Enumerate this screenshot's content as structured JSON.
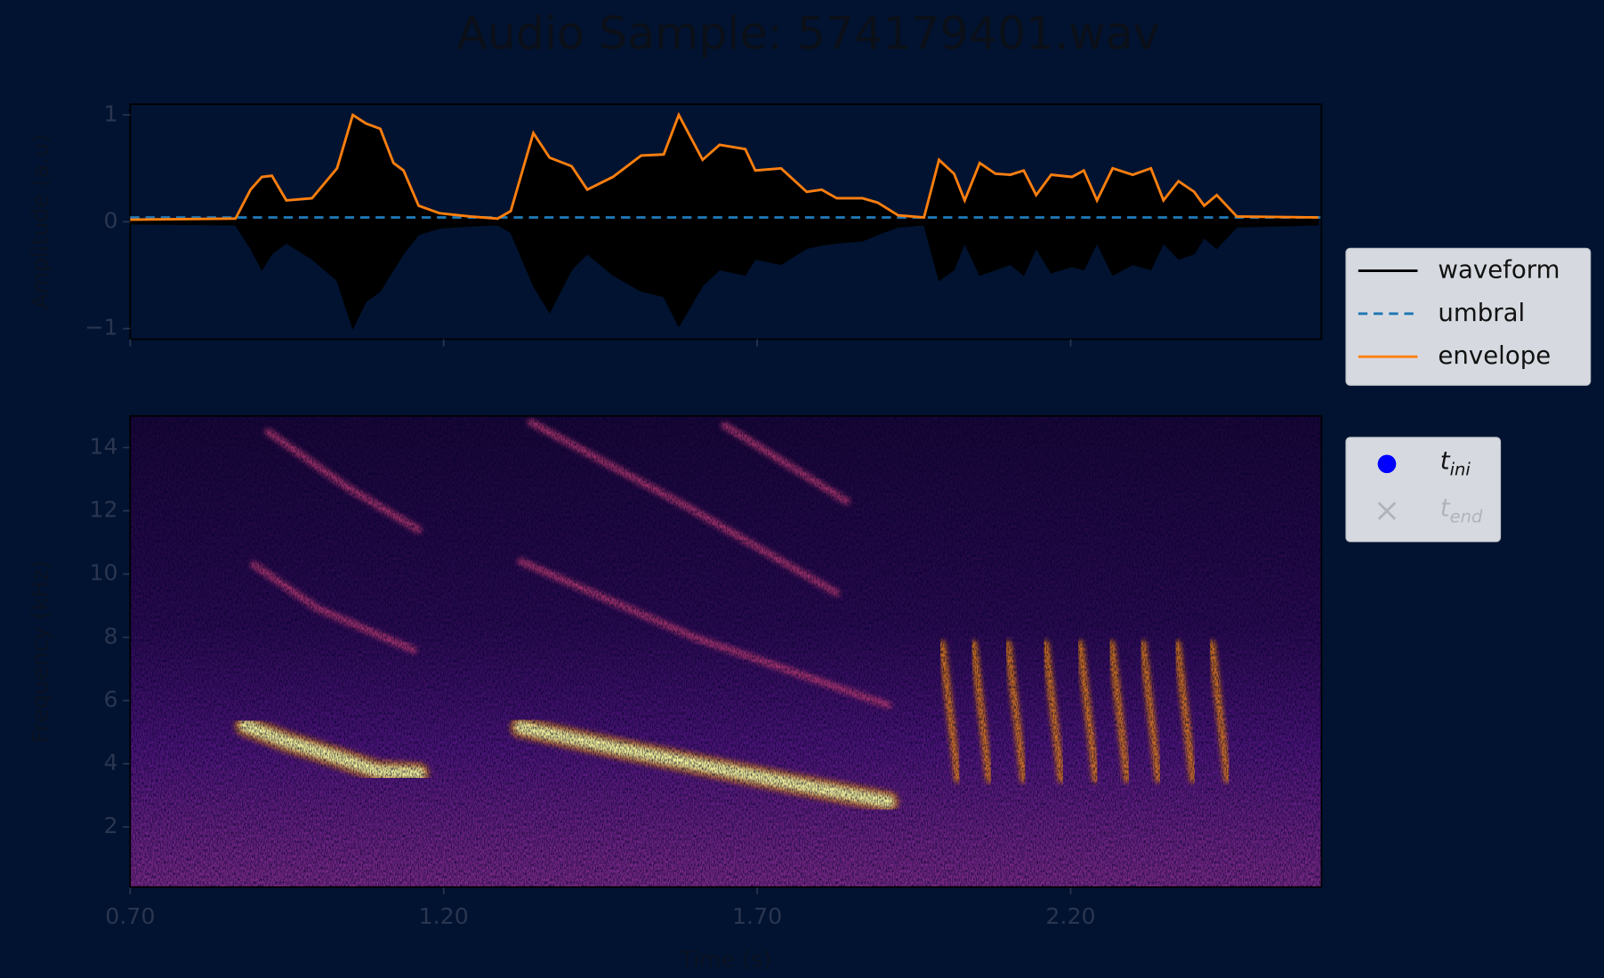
{
  "chart_data": [
    {
      "type": "line",
      "title": "Audio Sample: 574179401.wav",
      "ylabel": "Amplitude (a.u)",
      "xlim": [
        0.7,
        2.6
      ],
      "ylim": [
        -1.1,
        1.1
      ],
      "xticks": [
        0.7,
        1.2,
        1.7,
        2.2
      ],
      "yticks": [
        {
          "value": -1,
          "label": "−1"
        },
        0,
        1
      ],
      "legend": "right",
      "series": [
        {
          "name": "waveform",
          "color": "#000000",
          "style": "fill",
          "x": [
            0.7,
            0.868,
            0.892,
            0.91,
            0.926,
            0.949,
            0.99,
            1.03,
            1.055,
            1.076,
            1.099,
            1.12,
            1.136,
            1.16,
            1.193,
            1.242,
            1.286,
            1.307,
            1.343,
            1.369,
            1.404,
            1.429,
            1.47,
            1.515,
            1.551,
            1.575,
            1.613,
            1.64,
            1.681,
            1.697,
            1.738,
            1.779,
            1.803,
            1.827,
            1.868,
            1.892,
            1.925,
            1.966,
            1.99,
            2.014,
            2.031,
            2.055,
            2.08,
            2.104,
            2.125,
            2.145,
            2.169,
            2.202,
            2.221,
            2.242,
            2.267,
            2.299,
            2.328,
            2.348,
            2.372,
            2.397,
            2.413,
            2.433,
            2.465,
            2.595
          ],
          "values": [
            0.02,
            0.03,
            0.28,
            0.4,
            0.41,
            0.18,
            0.2,
            0.48,
            0.97,
            0.9,
            0.85,
            0.52,
            0.45,
            0.13,
            0.07,
            0.04,
            0.03,
            0.09,
            0.8,
            0.58,
            0.5,
            0.28,
            0.4,
            0.6,
            0.61,
            0.97,
            0.56,
            0.7,
            0.66,
            0.46,
            0.48,
            0.26,
            0.28,
            0.2,
            0.2,
            0.16,
            0.05,
            0.03,
            0.56,
            0.43,
            0.18,
            0.53,
            0.43,
            0.42,
            0.46,
            0.23,
            0.42,
            0.4,
            0.46,
            0.18,
            0.48,
            0.42,
            0.48,
            0.18,
            0.36,
            0.26,
            0.13,
            0.23,
            0.04,
            0.03
          ],
          "lower": [
            -0.02,
            -0.03,
            -0.25,
            -0.45,
            -0.3,
            -0.2,
            -0.35,
            -0.55,
            -1.0,
            -0.75,
            -0.65,
            -0.45,
            -0.3,
            -0.12,
            -0.06,
            -0.04,
            -0.03,
            -0.1,
            -0.6,
            -0.85,
            -0.45,
            -0.3,
            -0.5,
            -0.65,
            -0.7,
            -0.98,
            -0.6,
            -0.45,
            -0.5,
            -0.35,
            -0.4,
            -0.25,
            -0.22,
            -0.2,
            -0.18,
            -0.12,
            -0.05,
            -0.03,
            -0.55,
            -0.45,
            -0.2,
            -0.5,
            -0.45,
            -0.4,
            -0.5,
            -0.25,
            -0.48,
            -0.42,
            -0.45,
            -0.2,
            -0.5,
            -0.4,
            -0.45,
            -0.2,
            -0.35,
            -0.3,
            -0.15,
            -0.25,
            -0.05,
            -0.03
          ]
        },
        {
          "name": "umbral",
          "color": "#1f77b4",
          "style": "dashed",
          "x": [
            0.7,
            2.6
          ],
          "values": [
            0.04,
            0.04
          ]
        },
        {
          "name": "envelope",
          "color": "#ff7f0e",
          "style": "solid",
          "x": [
            0.7,
            0.868,
            0.892,
            0.91,
            0.926,
            0.949,
            0.99,
            1.03,
            1.055,
            1.076,
            1.099,
            1.12,
            1.136,
            1.16,
            1.193,
            1.242,
            1.286,
            1.307,
            1.343,
            1.369,
            1.404,
            1.429,
            1.47,
            1.515,
            1.551,
            1.575,
            1.613,
            1.64,
            1.681,
            1.697,
            1.738,
            1.779,
            1.803,
            1.827,
            1.868,
            1.892,
            1.925,
            1.966,
            1.99,
            2.014,
            2.031,
            2.055,
            2.08,
            2.104,
            2.125,
            2.145,
            2.169,
            2.202,
            2.221,
            2.242,
            2.267,
            2.299,
            2.328,
            2.348,
            2.372,
            2.397,
            2.413,
            2.433,
            2.465,
            2.595
          ],
          "values": [
            0.02,
            0.03,
            0.3,
            0.42,
            0.43,
            0.2,
            0.22,
            0.5,
            1.0,
            0.92,
            0.87,
            0.55,
            0.48,
            0.15,
            0.08,
            0.05,
            0.03,
            0.1,
            0.83,
            0.6,
            0.52,
            0.3,
            0.42,
            0.62,
            0.63,
            1.0,
            0.58,
            0.72,
            0.68,
            0.48,
            0.5,
            0.28,
            0.3,
            0.22,
            0.22,
            0.18,
            0.06,
            0.04,
            0.58,
            0.45,
            0.2,
            0.55,
            0.45,
            0.44,
            0.48,
            0.25,
            0.44,
            0.42,
            0.48,
            0.2,
            0.5,
            0.44,
            0.5,
            0.2,
            0.38,
            0.28,
            0.15,
            0.25,
            0.05,
            0.04
          ]
        }
      ]
    },
    {
      "type": "spectrogram",
      "xlabel": "Time (s)",
      "ylabel": "Frequency (kHz)",
      "xlim": [
        0.7,
        2.6
      ],
      "ylim": [
        0.1,
        15
      ],
      "xticks": [
        {
          "value": 0.7,
          "label": "0.70"
        },
        {
          "value": 1.2,
          "label": "1.20"
        },
        {
          "value": 1.7,
          "label": "1.70"
        },
        {
          "value": 2.2,
          "label": "2.20"
        }
      ],
      "yticks": [
        2,
        4,
        6,
        8,
        10,
        12,
        14
      ],
      "legend": "right",
      "tracks": [
        {
          "color": "#fcffa4",
          "x": [
            0.884,
            0.95,
            1.03,
            1.095,
            1.16
          ],
          "values": [
            5.2,
            4.7,
            4.2,
            3.77,
            3.7
          ]
        },
        {
          "color": "#fcffa4",
          "x": [
            1.323,
            1.45,
            1.6,
            1.75,
            1.909
          ],
          "values": [
            5.15,
            4.6,
            4.0,
            3.4,
            2.8
          ]
        },
        {
          "color": "#c43c75",
          "x": [
            0.897,
            1.0,
            1.152
          ],
          "values": [
            10.3,
            8.9,
            7.6
          ]
        },
        {
          "color": "#c43c75",
          "x": [
            0.92,
            1.05,
            1.16
          ],
          "values": [
            14.5,
            12.7,
            11.4
          ]
        },
        {
          "color": "#c43c75",
          "x": [
            1.323,
            1.6,
            1.909
          ],
          "values": [
            10.4,
            8.0,
            5.85
          ]
        },
        {
          "color": "#c43c75",
          "x": [
            1.339,
            1.6,
            1.827
          ],
          "values": [
            14.8,
            12.0,
            9.4
          ]
        },
        {
          "color": "#c43c75",
          "x": [
            1.648,
            1.843
          ],
          "values": [
            14.7,
            12.3
          ]
        },
        {
          "color": "#f98e09",
          "x": [
            1.995,
            2.02
          ],
          "values": [
            7.8,
            3.5
          ]
        },
        {
          "color": "#f98e09",
          "x": [
            2.045,
            2.07
          ],
          "values": [
            7.8,
            3.5
          ]
        },
        {
          "color": "#f98e09",
          "x": [
            2.1,
            2.125
          ],
          "values": [
            7.8,
            3.5
          ]
        },
        {
          "color": "#f98e09",
          "x": [
            2.16,
            2.185
          ],
          "values": [
            7.8,
            3.5
          ]
        },
        {
          "color": "#f98e09",
          "x": [
            2.215,
            2.24
          ],
          "values": [
            7.8,
            3.5
          ]
        },
        {
          "color": "#f98e09",
          "x": [
            2.265,
            2.29
          ],
          "values": [
            7.8,
            3.5
          ]
        },
        {
          "color": "#f98e09",
          "x": [
            2.315,
            2.34
          ],
          "values": [
            7.8,
            3.5
          ]
        },
        {
          "color": "#f98e09",
          "x": [
            2.37,
            2.395
          ],
          "values": [
            7.8,
            3.5
          ]
        },
        {
          "color": "#f98e09",
          "x": [
            2.425,
            2.45
          ],
          "values": [
            7.8,
            3.5
          ]
        }
      ],
      "series": [
        {
          "name": "t",
          "subscript": "ini",
          "color": "#0000ff",
          "marker": "circle"
        },
        {
          "name": "t",
          "subscript": "end",
          "color": "#b0b4ba",
          "marker": "x"
        }
      ]
    }
  ]
}
